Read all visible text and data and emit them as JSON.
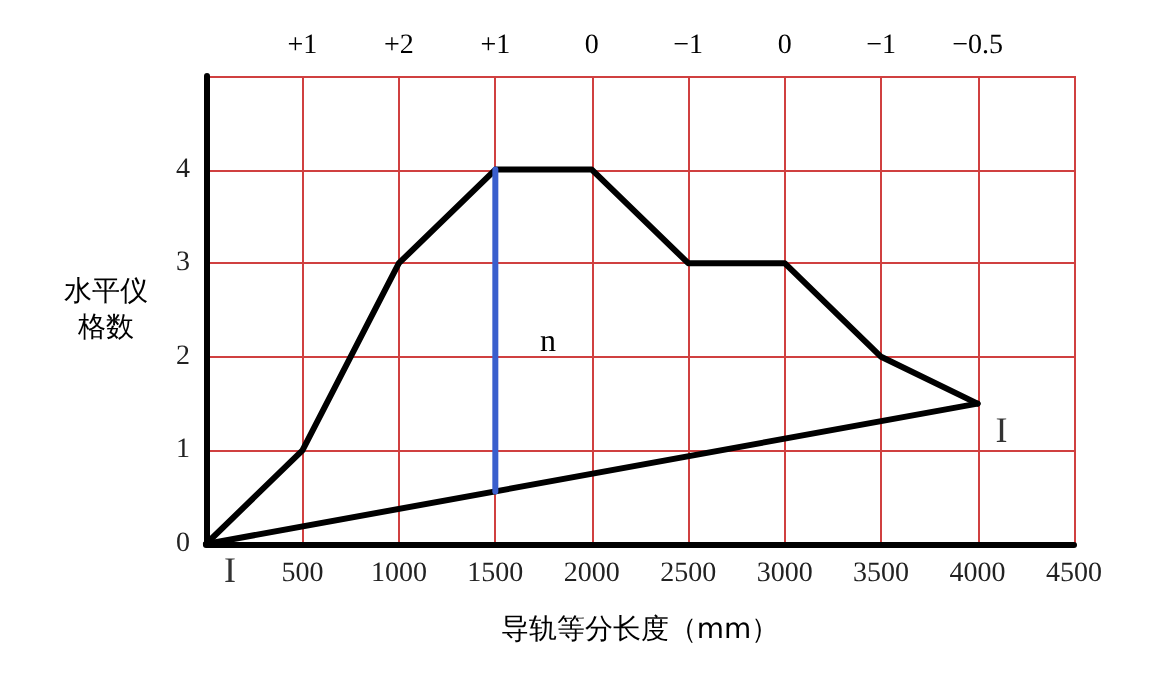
{
  "chart_data": {
    "type": "line",
    "xlabel": "导轨等分长度（mm）",
    "ylabel": "水平仪格数",
    "xlim": [
      0,
      4500
    ],
    "xticks": [
      500,
      1000,
      1500,
      2000,
      2500,
      3000,
      3500,
      4000,
      4500
    ],
    "ylim": [
      0,
      5
    ],
    "yticks": [
      0,
      1,
      2,
      3,
      4,
      {
        "value": 5,
        "label": null
      }
    ],
    "grid": true,
    "marker": "none",
    "line_style": "solid",
    "series": [
      {
        "color": "#000000",
        "x": [
          0,
          500,
          1000,
          1500,
          2000,
          2500,
          3000,
          3500,
          4000
        ],
        "values": [
          0,
          1,
          3,
          4,
          4,
          3,
          3,
          2,
          1.5
        ]
      },
      {
        "color": "#000000",
        "x": [
          0,
          4000
        ],
        "values": [
          0,
          1.5
        ]
      },
      {
        "color": "#3a5fcd",
        "x": [
          1500,
          1500
        ],
        "values": [
          0.56,
          4
        ]
      }
    ],
    "annotations": [
      "n",
      {
        "text": "I",
        "x": 0,
        "y": 0
      },
      {
        "text": "I",
        "x": 4000,
        "y": 1.5
      },
      "+1",
      "+2",
      "+1",
      "0",
      "−1",
      "0",
      "−1",
      "−0.5"
    ]
  }
}
